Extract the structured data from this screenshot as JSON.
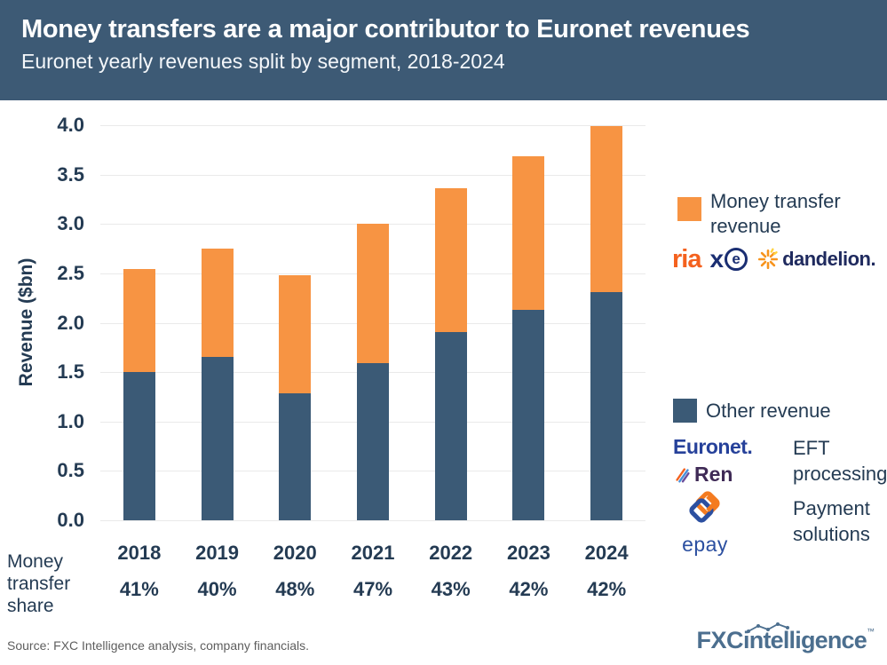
{
  "header": {
    "title": "Money transfers are a major contributor to Euronet revenues",
    "subtitle": "Euronet yearly revenues split by segment, 2018-2024"
  },
  "colors": {
    "header_bg": "#3D5A75",
    "money_orange": "#F79443",
    "other_navy": "#3B5A76",
    "text_navy": "#243B53",
    "gridline": "#EAEAEA"
  },
  "chart_data": {
    "type": "bar",
    "stacked": true,
    "title": "Euronet yearly revenues split by segment, 2018-2024",
    "categories": [
      "2018",
      "2019",
      "2020",
      "2021",
      "2022",
      "2023",
      "2024"
    ],
    "series": [
      {
        "name": "Other revenue",
        "color": "#3B5A76",
        "values": [
          1.5,
          1.65,
          1.29,
          1.59,
          1.91,
          2.13,
          2.31
        ]
      },
      {
        "name": "Money transfer revenue",
        "color": "#F79443",
        "values": [
          1.04,
          1.1,
          1.19,
          1.41,
          1.45,
          1.56,
          1.68
        ]
      }
    ],
    "totals": [
      2.54,
      2.75,
      2.48,
      3.0,
      3.36,
      3.69,
      3.99
    ],
    "xlabel": "",
    "ylabel": "Revenue ($bn)",
    "ylim": [
      0,
      4
    ],
    "yticks": [
      "0.0",
      "0.5",
      "1.0",
      "1.5",
      "2.0",
      "2.5",
      "3.0",
      "3.5",
      "4.0"
    ],
    "grid": true,
    "legend_position": "right"
  },
  "share_row": {
    "label": "Money transfer share",
    "values": [
      "41%",
      "40%",
      "48%",
      "47%",
      "43%",
      "42%",
      "42%"
    ]
  },
  "legend": {
    "money_label": "Money transfer revenue",
    "other_label": "Other revenue",
    "brands_money": {
      "ria": "ria",
      "xe_x": "x",
      "xe_e": "e",
      "dandelion": "dandelion."
    },
    "brands_other": {
      "euronet": "Euronet.",
      "ren": "Ren",
      "epay": "epay"
    },
    "eft_desc": "EFT processing",
    "payment_desc": "Payment solutions"
  },
  "footer": {
    "source": "Source: FXC Intelligence analysis, company financials.",
    "logo_fxc": "FXC",
    "logo_rest": "intelligence",
    "logo_tm": "™"
  }
}
